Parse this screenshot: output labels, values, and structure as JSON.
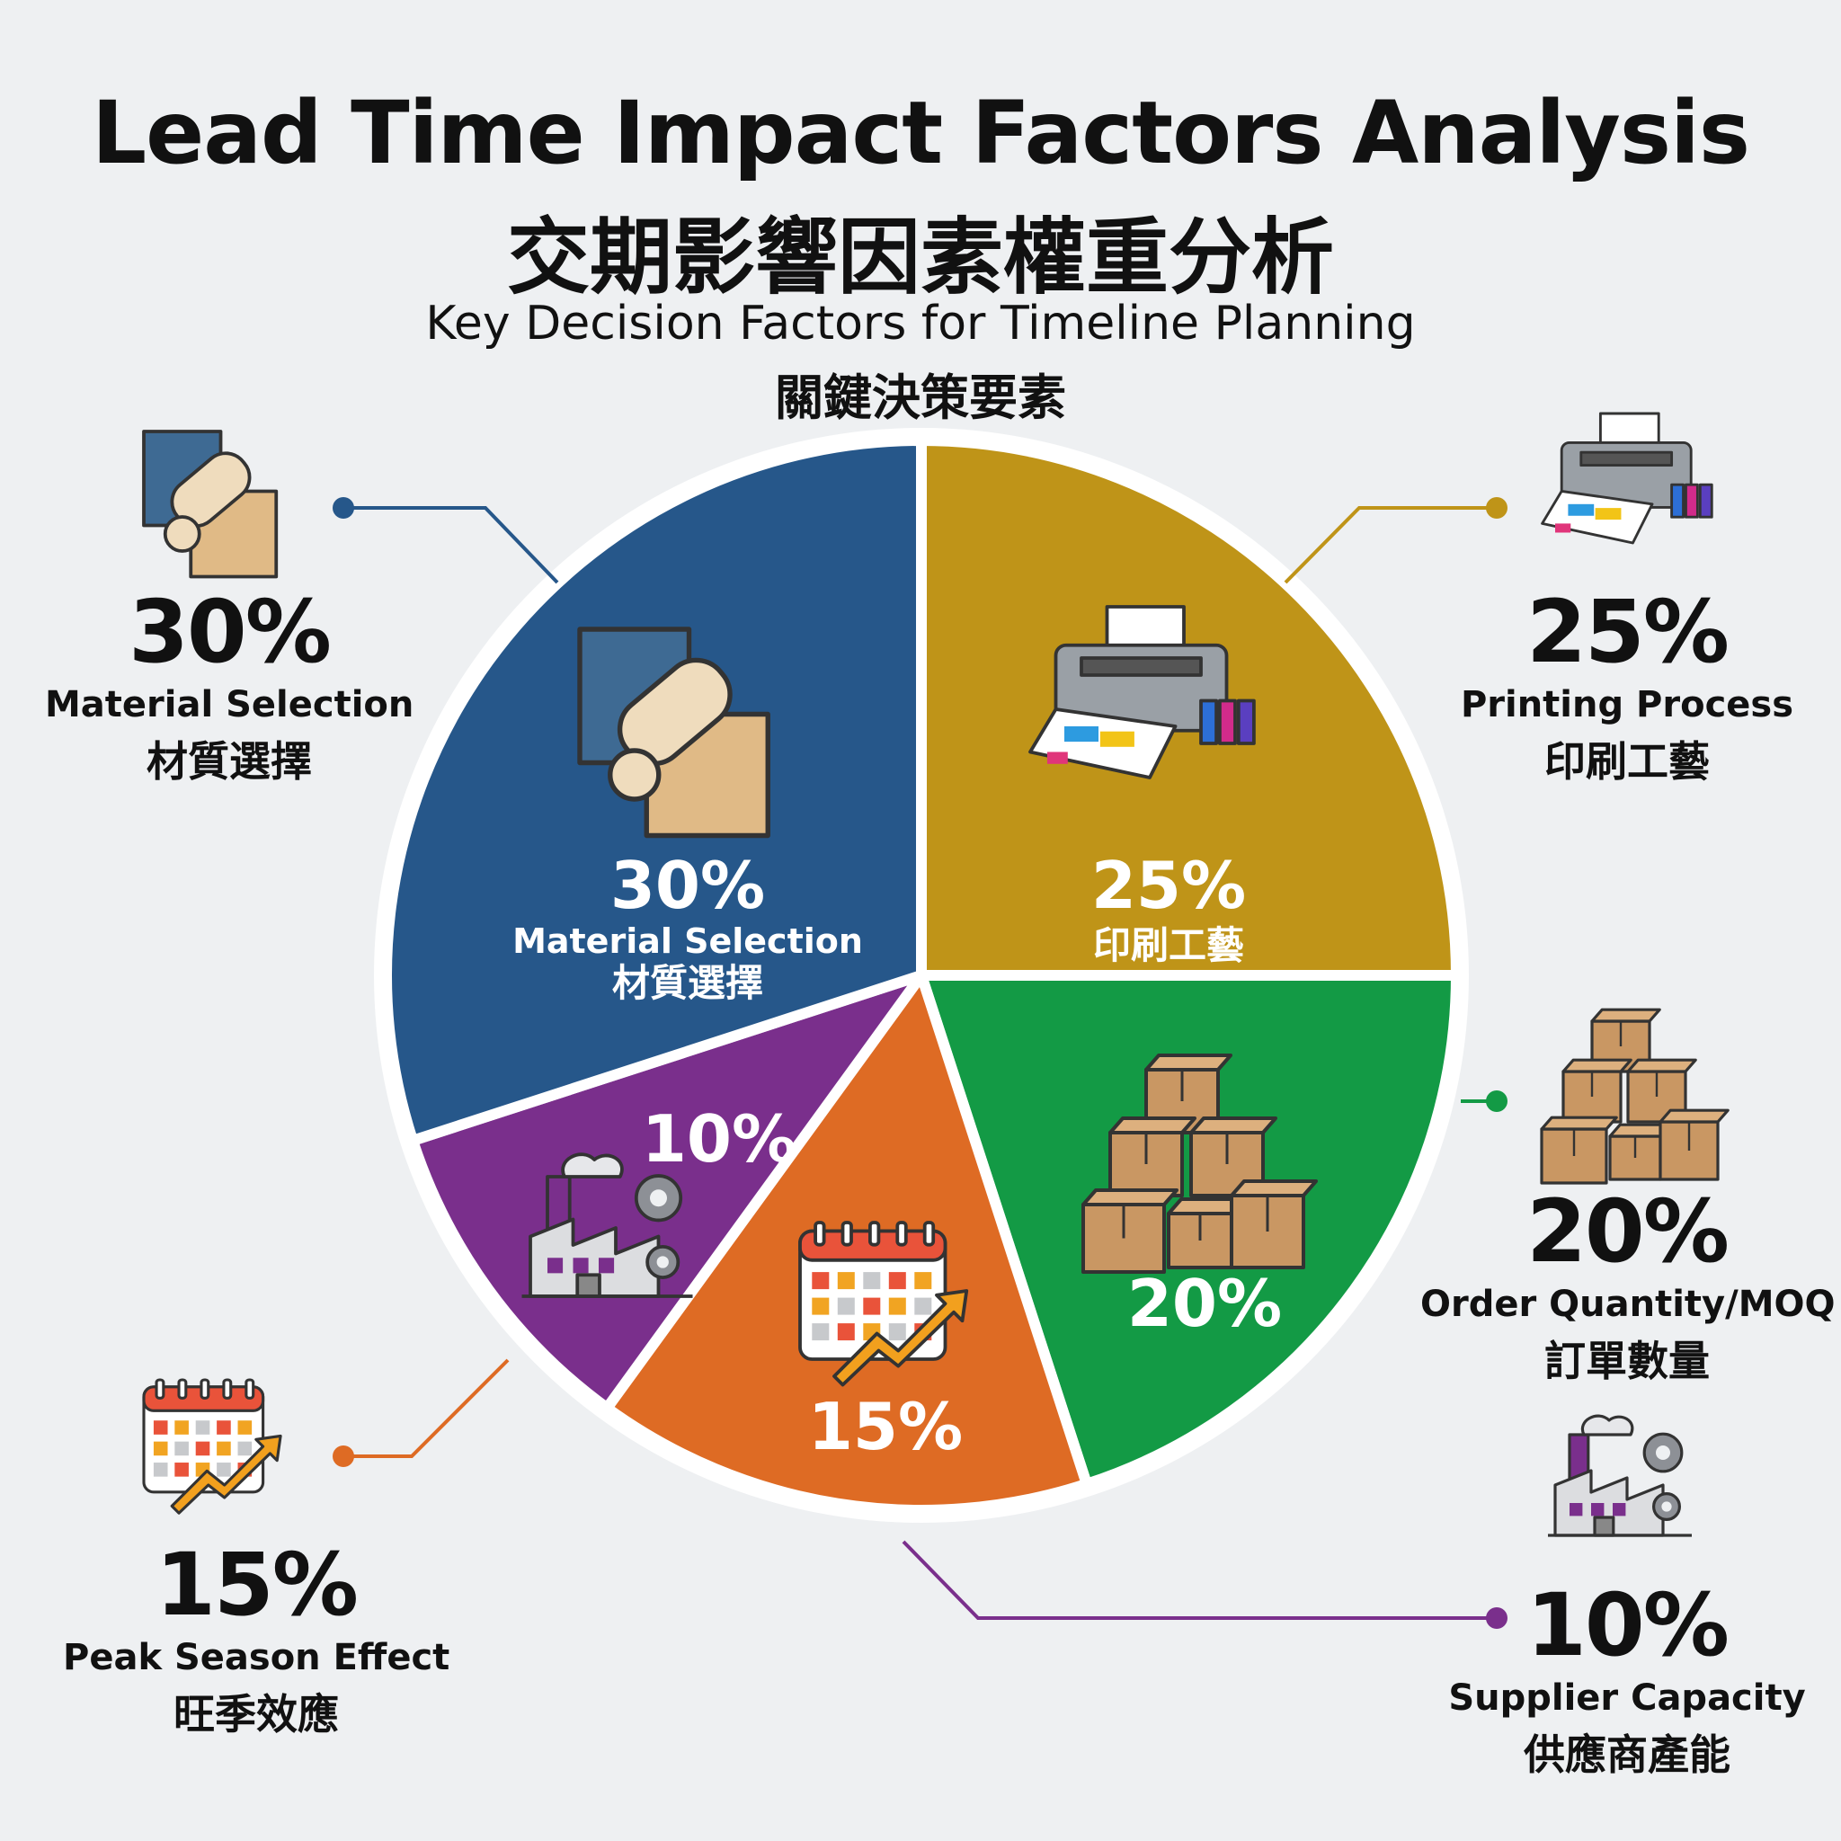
{
  "title": "Lead Time Impact Factors Analysis",
  "title_zh": "交期影響因素權重分析",
  "subtitle": "Key Decision Factors for Timeline Planning",
  "subtitle_zh": "關鍵決策要素",
  "chart_data": {
    "type": "pie",
    "title": "Lead Time Impact Factors Analysis",
    "subtitle": "Key Decision Factors for Timeline Planning",
    "legend": "callouts-around-pie",
    "slices": [
      {
        "label": "Material Selection",
        "label_zh": "材質選擇",
        "value": 30,
        "value_label": "30%",
        "color": "#26578a",
        "icon": "fabric-swatch-icon"
      },
      {
        "label": "Printing Process",
        "label_zh": "印刷工藝",
        "value": 25,
        "value_label": "25%",
        "color": "#bf9418",
        "icon": "printer-icon"
      },
      {
        "label": "Order Quantity/MOQ",
        "label_zh": "訂單數量",
        "value": 20,
        "value_label": "20%",
        "color": "#139a45",
        "icon": "boxes-icon"
      },
      {
        "label": "Peak Season Effect",
        "label_zh": "旺季效應",
        "value": 15,
        "value_label": "15%",
        "color": "#de6b24",
        "icon": "calendar-trend-icon"
      },
      {
        "label": "Supplier Capacity",
        "label_zh": "供應商產能",
        "value": 10,
        "value_label": "10%",
        "color": "#7a2f8c",
        "icon": "factory-icon"
      }
    ]
  }
}
